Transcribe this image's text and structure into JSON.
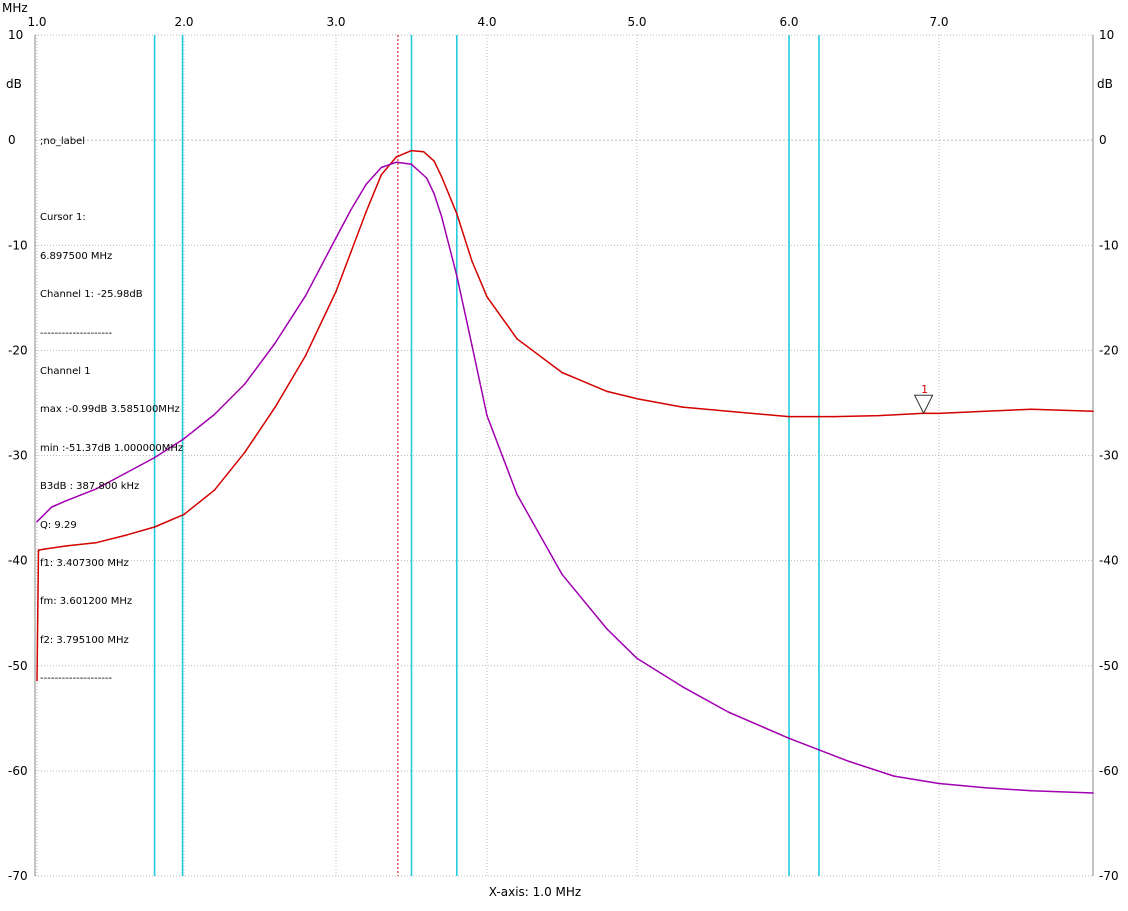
{
  "chart_data": {
    "type": "line",
    "x_unit": "MHz",
    "y_unit": "dB",
    "xlim": [
      1.0,
      8.0
    ],
    "ylim": [
      -70,
      10
    ],
    "x_ticks": [
      {
        "v": 1.0,
        "label": "1.0"
      },
      {
        "v": 2.0,
        "label": "2.0"
      },
      {
        "v": 3.0,
        "label": "3.0"
      },
      {
        "v": 4.0,
        "label": "4.0"
      },
      {
        "v": 5.0,
        "label": "5.0"
      },
      {
        "v": 6.0,
        "label": "6.0"
      },
      {
        "v": 7.0,
        "label": "7.0"
      }
    ],
    "y_ticks": [
      {
        "v": 10,
        "label": "10"
      },
      {
        "v": 0,
        "label": "0"
      },
      {
        "v": -10,
        "label": "-10"
      },
      {
        "v": -20,
        "label": "-20"
      },
      {
        "v": -30,
        "label": "-30"
      },
      {
        "v": -40,
        "label": "-40"
      },
      {
        "v": -50,
        "label": "-50"
      },
      {
        "v": -60,
        "label": "-60"
      },
      {
        "v": -70,
        "label": "-70"
      }
    ],
    "xlabel": "X-axis: 1.0 MHz",
    "grid": true,
    "colors": {
      "red": "#d40000",
      "purple": "#a000b0",
      "cyan": "#22ccdd",
      "grid": "#bbbbbb"
    },
    "vertical_markers": [
      {
        "x": 1.8,
        "color": "#22ccdd"
      },
      {
        "x": 1.99,
        "color": "#22ccdd"
      },
      {
        "x": 3.41,
        "color": "#d40000",
        "dotted": true
      },
      {
        "x": 3.5,
        "color": "#22ccdd"
      },
      {
        "x": 3.8,
        "color": "#22ccdd"
      },
      {
        "x": 6.0,
        "color": "#22ccdd"
      },
      {
        "x": 6.2,
        "color": "#22ccdd"
      }
    ],
    "cursor_marker": {
      "label": "1",
      "x": 6.8975,
      "y": -25.98
    },
    "series": [
      {
        "color": "#d40000",
        "x": [
          1.0,
          1.01,
          1.05,
          1.2,
          1.4,
          1.6,
          1.8,
          2.0,
          2.2,
          2.4,
          2.6,
          2.8,
          3.0,
          3.1,
          3.2,
          3.3,
          3.4,
          3.5,
          3.58,
          3.65,
          3.7,
          3.8,
          3.9,
          4.0,
          4.2,
          4.5,
          4.8,
          5.0,
          5.3,
          5.6,
          6.0,
          6.3,
          6.6,
          6.9,
          7.0,
          7.3,
          7.6,
          8.0
        ],
        "y": [
          -51.4,
          -39.0,
          -38.9,
          -38.6,
          -38.3,
          -37.6,
          -36.8,
          -35.6,
          -33.3,
          -29.7,
          -25.4,
          -20.5,
          -14.4,
          -10.6,
          -6.8,
          -3.3,
          -1.6,
          -1.0,
          -1.1,
          -2.0,
          -3.5,
          -7.0,
          -11.5,
          -14.9,
          -18.9,
          -22.1,
          -23.9,
          -24.6,
          -25.4,
          -25.8,
          -26.3,
          -26.3,
          -26.2,
          -25.98,
          -26.0,
          -25.8,
          -25.6,
          -25.8
        ]
      },
      {
        "color": "#a000b0",
        "x": [
          1.0,
          1.1,
          1.2,
          1.4,
          1.6,
          1.8,
          2.0,
          2.2,
          2.4,
          2.6,
          2.8,
          3.0,
          3.1,
          3.2,
          3.3,
          3.4,
          3.5,
          3.6,
          3.65,
          3.7,
          3.8,
          3.9,
          4.0,
          4.2,
          4.5,
          4.8,
          5.0,
          5.3,
          5.6,
          6.0,
          6.4,
          6.7,
          7.0,
          7.3,
          7.6,
          8.0
        ],
        "y": [
          -36.3,
          -34.9,
          -34.3,
          -33.2,
          -31.7,
          -30.2,
          -28.4,
          -26.1,
          -23.2,
          -19.3,
          -14.8,
          -9.3,
          -6.6,
          -4.2,
          -2.6,
          -2.1,
          -2.3,
          -3.6,
          -5.1,
          -7.3,
          -12.9,
          -19.5,
          -26.2,
          -33.7,
          -41.3,
          -46.5,
          -49.3,
          -52.0,
          -54.4,
          -56.9,
          -59.1,
          -60.5,
          -61.2,
          -61.6,
          -61.9,
          -62.1
        ]
      }
    ]
  },
  "top_left_unit": "MHz",
  "y_unit_left": "dB",
  "y_unit_right": "dB",
  "info_lines": [
    ";no_label",
    "",
    "Cursor 1:",
    "6.897500 MHz",
    "Channel 1: -25.98dB",
    "--------------------",
    "Channel 1",
    "max :-0.99dB 3.585100MHz",
    "min :-51.37dB 1.000000MHz",
    "B3dB : 387.800 kHz",
    "Q: 9.29",
    "f1: 3.407300 MHz",
    "fm: 3.601200 MHz",
    "f2: 3.795100 MHz",
    "--------------------"
  ]
}
